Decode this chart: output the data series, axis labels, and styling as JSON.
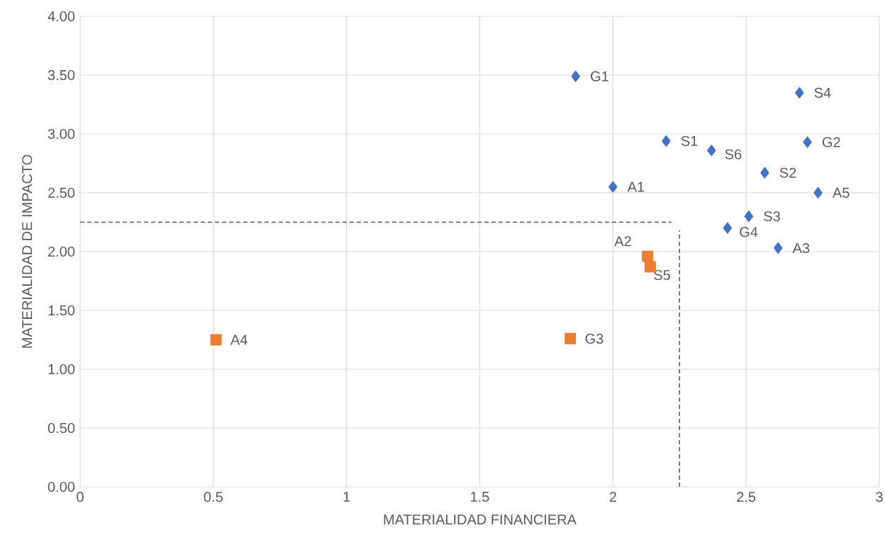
{
  "chart_data": {
    "type": "scatter",
    "xlabel": "MATERIALIDAD FINANCIERA",
    "ylabel": "MATERIALIDAD DE IMPACTO",
    "xlim": [
      0,
      3
    ],
    "xticks": [
      0,
      0.5,
      1,
      1.5,
      2,
      2.5,
      3
    ],
    "ylim": [
      0,
      4
    ],
    "yticks": [
      {
        "value": 0,
        "label": "0.00"
      },
      {
        "value": 0.5,
        "label": "0.50"
      },
      {
        "value": 1,
        "label": "1.00"
      },
      {
        "value": 1.5,
        "label": "1.50"
      },
      {
        "value": 2,
        "label": "2.00"
      },
      {
        "value": 2.5,
        "label": "2.50"
      },
      {
        "value": 3,
        "label": "3.00"
      },
      {
        "value": 3.5,
        "label": "3.50"
      },
      {
        "value": 4,
        "label": "4.00"
      }
    ],
    "grid": true,
    "series": [
      {
        "color": "#4472c4",
        "marker": "diamond",
        "x": [
          1.86,
          2.7,
          2.2,
          2.37,
          2.73,
          2.57,
          2.0,
          2.77,
          2.51,
          2.43,
          2.62
        ],
        "values": [
          3.49,
          3.35,
          2.94,
          2.86,
          2.93,
          2.67,
          2.55,
          2.5,
          2.3,
          2.2,
          2.03
        ]
      },
      {
        "color": "#ed7d31",
        "marker": "square",
        "x": [
          2.13,
          2.14,
          0.51,
          1.84
        ],
        "values": [
          1.96,
          1.87,
          1.25,
          1.26
        ]
      },
      {
        "type": "line",
        "color": "#595959",
        "line_style": "dashed",
        "marker": "none",
        "x": [
          0,
          2.22
        ],
        "values": [
          2.25,
          2.25
        ]
      },
      {
        "type": "line",
        "color": "#595959",
        "line_style": "dashed",
        "marker": "none",
        "x": [
          2.25,
          2.25
        ],
        "values": [
          0,
          2.18
        ]
      }
    ],
    "annotations": [
      {
        "text": "G1",
        "x": 1.86,
        "y": 3.49
      },
      {
        "text": "S4",
        "x": 2.7,
        "y": 3.35
      },
      {
        "text": "S1",
        "x": 2.2,
        "y": 2.94
      },
      {
        "text": "S6",
        "x": 2.37,
        "y": 2.86
      },
      {
        "text": "G2",
        "x": 2.73,
        "y": 2.93
      },
      {
        "text": "S2",
        "x": 2.57,
        "y": 2.67
      },
      {
        "text": "A1",
        "x": 2.0,
        "y": 2.55
      },
      {
        "text": "A5",
        "x": 2.77,
        "y": 2.5
      },
      {
        "text": "S3",
        "x": 2.51,
        "y": 2.3
      },
      {
        "text": "G4",
        "x": 2.43,
        "y": 2.2
      },
      {
        "text": "A3",
        "x": 2.62,
        "y": 2.03
      },
      {
        "text": "A2",
        "x": 2.13,
        "y": 1.96
      },
      {
        "text": "S5",
        "x": 2.14,
        "y": 1.87
      },
      {
        "text": "A4",
        "x": 0.51,
        "y": 1.25
      },
      {
        "text": "G3",
        "x": 1.84,
        "y": 1.26
      }
    ]
  }
}
